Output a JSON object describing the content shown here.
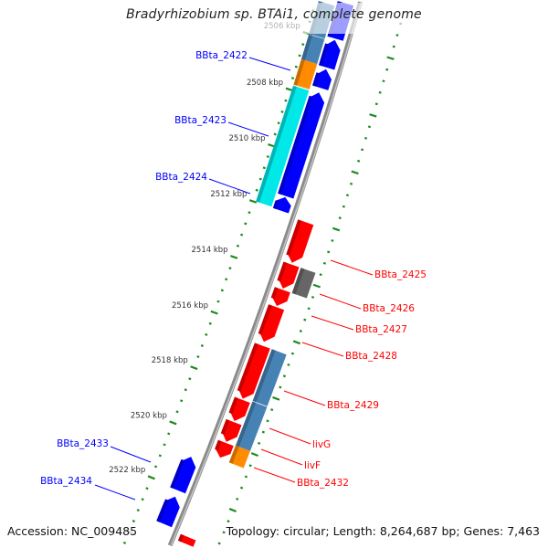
{
  "title": "Bradyrhizobium sp. BTAi1, complete genome",
  "footer": {
    "accession": "Accession: NC_009485",
    "topology": "Topology: circular; Length: 8,264,687 bp; Genes: 7,463"
  },
  "colors": {
    "forward_gene": "#0000ff",
    "reverse_gene": "#ff0000",
    "cyan_feature": "#00e8e8",
    "steel_feature": "#4682b4",
    "orange_feature": "#ff8c00",
    "gray_feature": "#666666",
    "ticks": "#1f8a1f",
    "backbone": "#8a8a8a"
  },
  "ticks": {
    "labels": [
      "2506 kbp",
      "2508 kbp",
      "2510 kbp",
      "2512 kbp",
      "2514 kbp",
      "2516 kbp",
      "2518 kbp",
      "2520 kbp",
      "2522 kbp"
    ],
    "major_kbp": [
      2506,
      2508,
      2510,
      2512,
      2514,
      2516,
      2518,
      2520,
      2522
    ]
  },
  "features": [
    {
      "strand": "forward",
      "row": 1,
      "color": "forward_gene",
      "start_kbp": 2503.6,
      "end_kbp": 2505.9
    },
    {
      "strand": "forward",
      "row": 1,
      "color": "forward_gene",
      "start_kbp": 2505.95,
      "end_kbp": 2506.92
    },
    {
      "strand": "forward",
      "row": 1,
      "color": "forward_gene",
      "start_kbp": 2506.98,
      "end_kbp": 2507.64
    },
    {
      "strand": "forward",
      "row": 1,
      "color": "forward_gene",
      "start_kbp": 2507.8,
      "end_kbp": 2511.48
    },
    {
      "strand": "forward",
      "row": 1,
      "color": "forward_gene",
      "start_kbp": 2511.52,
      "end_kbp": 2512.0
    },
    {
      "strand": "forward",
      "row": 1,
      "color": "forward_gene",
      "start_kbp": 2520.85,
      "end_kbp": 2522.07
    },
    {
      "strand": "forward",
      "row": 1,
      "color": "forward_gene",
      "start_kbp": 2522.3,
      "end_kbp": 2523.3
    },
    {
      "strand": "forward",
      "row": 2,
      "color": "steel_feature",
      "start_kbp": 2503.6,
      "end_kbp": 2506.0
    },
    {
      "strand": "forward",
      "row": 2,
      "color": "steel_feature",
      "start_kbp": 2506.02,
      "end_kbp": 2506.9
    },
    {
      "strand": "forward",
      "row": 2,
      "color": "orange_feature",
      "start_kbp": 2506.9,
      "end_kbp": 2507.8
    },
    {
      "strand": "forward",
      "row": 2,
      "color": "cyan_feature",
      "start_kbp": 2507.84,
      "end_kbp": 2511.97
    },
    {
      "strand": "reverse",
      "row": 1,
      "color": "reverse_gene",
      "start_kbp": 2512.1,
      "end_kbp": 2513.54
    },
    {
      "strand": "reverse",
      "row": 1,
      "color": "reverse_gene",
      "start_kbp": 2513.6,
      "end_kbp": 2514.46
    },
    {
      "strand": "reverse",
      "row": 1,
      "color": "reverse_gene",
      "start_kbp": 2514.5,
      "end_kbp": 2515.08
    },
    {
      "strand": "reverse",
      "row": 1,
      "color": "reverse_gene",
      "start_kbp": 2515.12,
      "end_kbp": 2516.36
    },
    {
      "strand": "reverse",
      "row": 1,
      "color": "reverse_gene",
      "start_kbp": 2516.5,
      "end_kbp": 2518.4
    },
    {
      "strand": "reverse",
      "row": 1,
      "color": "reverse_gene",
      "start_kbp": 2518.44,
      "end_kbp": 2519.2
    },
    {
      "strand": "reverse",
      "row": 1,
      "color": "reverse_gene",
      "start_kbp": 2519.24,
      "end_kbp": 2519.95
    },
    {
      "strand": "reverse",
      "row": 1,
      "color": "reverse_gene",
      "start_kbp": 2519.99,
      "end_kbp": 2520.52
    },
    {
      "strand": "reverse",
      "row": 1,
      "color": "reverse_gene",
      "start_kbp": 2523.4,
      "end_kbp": 2524.4
    },
    {
      "strand": "reverse",
      "row": 2,
      "color": "gray_feature",
      "start_kbp": 2513.6,
      "end_kbp": 2514.5
    },
    {
      "strand": "reverse",
      "row": 2,
      "color": "steel_feature",
      "start_kbp": 2516.5,
      "end_kbp": 2518.35
    },
    {
      "strand": "reverse",
      "row": 2,
      "color": "steel_feature",
      "start_kbp": 2518.37,
      "end_kbp": 2519.95
    },
    {
      "strand": "reverse",
      "row": 2,
      "color": "orange_feature",
      "start_kbp": 2519.95,
      "end_kbp": 2520.56
    }
  ],
  "gene_labels": [
    {
      "text": "BBta_2422",
      "color": "#0000ff"
    },
    {
      "text": "BBta_2423",
      "color": "#0000ff"
    },
    {
      "text": "BBta_2424",
      "color": "#0000ff"
    },
    {
      "text": "BBta_2433",
      "color": "#0000ff"
    },
    {
      "text": "BBta_2434",
      "color": "#0000ff"
    },
    {
      "text": "BBta_2425",
      "color": "#ff0000"
    },
    {
      "text": "BBta_2426",
      "color": "#ff0000"
    },
    {
      "text": "BBta_2427",
      "color": "#ff0000"
    },
    {
      "text": "BBta_2428",
      "color": "#ff0000"
    },
    {
      "text": "BBta_2429",
      "color": "#ff0000"
    },
    {
      "text": "livG",
      "color": "#ff0000"
    },
    {
      "text": "livF",
      "color": "#ff0000"
    },
    {
      "text": "BBta_2432",
      "color": "#ff0000"
    }
  ]
}
